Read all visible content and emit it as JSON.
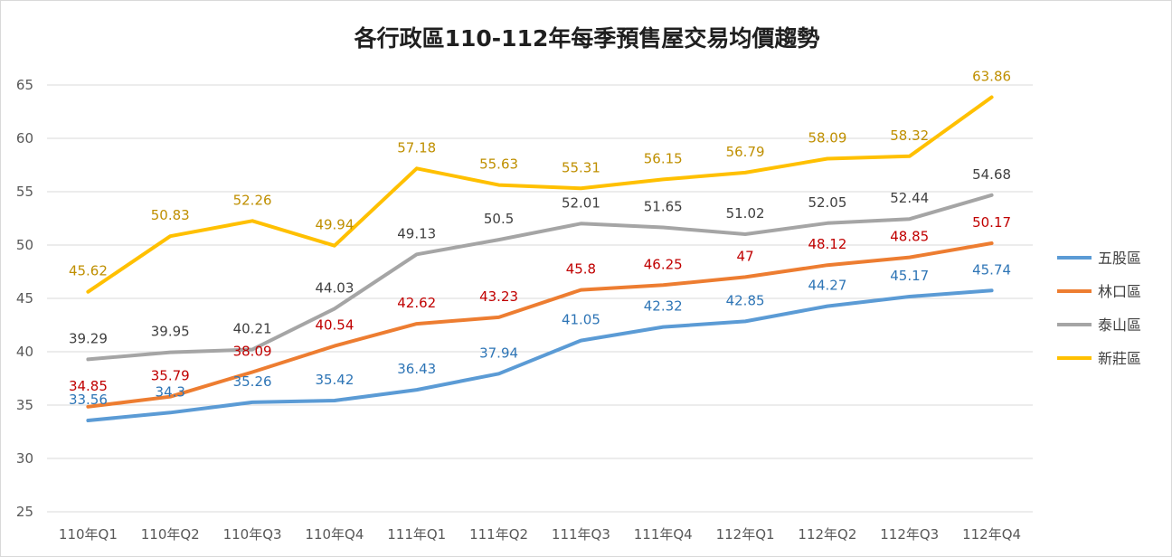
{
  "chart_data": {
    "type": "line",
    "title": "各行政區110-112年每季預售屋交易均價趨勢",
    "xlabel": "",
    "ylabel": "",
    "ylim": [
      25,
      65
    ],
    "yticks": [
      25,
      30,
      35,
      40,
      45,
      50,
      55,
      60,
      65
    ],
    "grid": true,
    "legend_position": "right",
    "categories": [
      "110年Q1",
      "110年Q2",
      "110年Q3",
      "110年Q4",
      "111年Q1",
      "111年Q2",
      "111年Q3",
      "111年Q4",
      "112年Q1",
      "112年Q2",
      "112年Q3",
      "112年Q4"
    ],
    "series": [
      {
        "name": "五股區",
        "color": "#5b9bd5",
        "label_color": "#2e75b6",
        "values": [
          33.56,
          34.3,
          35.26,
          35.42,
          36.43,
          37.94,
          41.05,
          42.32,
          42.85,
          44.27,
          45.17,
          45.74
        ],
        "labels": [
          "33.56",
          "34.3",
          "35.26",
          "35.42",
          "36.43",
          "37.94",
          "41.05",
          "42.32",
          "42.85",
          "44.27",
          "45.17",
          "45.74"
        ]
      },
      {
        "name": "林口區",
        "color": "#ed7d31",
        "label_color": "#c00000",
        "values": [
          34.85,
          35.79,
          38.09,
          40.54,
          42.62,
          43.23,
          45.8,
          46.25,
          47,
          48.12,
          48.85,
          50.17
        ],
        "labels": [
          "34.85",
          "35.79",
          "38.09",
          "40.54",
          "42.62",
          "43.23",
          "45.8",
          "46.25",
          "47",
          "48.12",
          "48.85",
          "50.17"
        ]
      },
      {
        "name": "泰山區",
        "color": "#a5a5a5",
        "label_color": "#404040",
        "values": [
          39.29,
          39.95,
          40.21,
          44.03,
          49.13,
          50.5,
          52.01,
          51.65,
          51.02,
          52.05,
          52.44,
          54.68
        ],
        "labels": [
          "39.29",
          "39.95",
          "40.21",
          "44.03",
          "49.13",
          "50.5",
          "52.01",
          "51.65",
          "51.02",
          "52.05",
          "52.44",
          "54.68"
        ]
      },
      {
        "name": "新莊區",
        "color": "#ffc000",
        "label_color": "#bf8f00",
        "values": [
          45.62,
          50.83,
          52.26,
          49.94,
          57.18,
          55.63,
          55.31,
          56.15,
          56.79,
          58.09,
          58.32,
          63.86
        ],
        "labels": [
          "45.62",
          "50.83",
          "52.26",
          "49.94",
          "57.18",
          "55.63",
          "55.31",
          "56.15",
          "56.79",
          "58.09",
          "58.32",
          "63.86"
        ]
      }
    ]
  }
}
